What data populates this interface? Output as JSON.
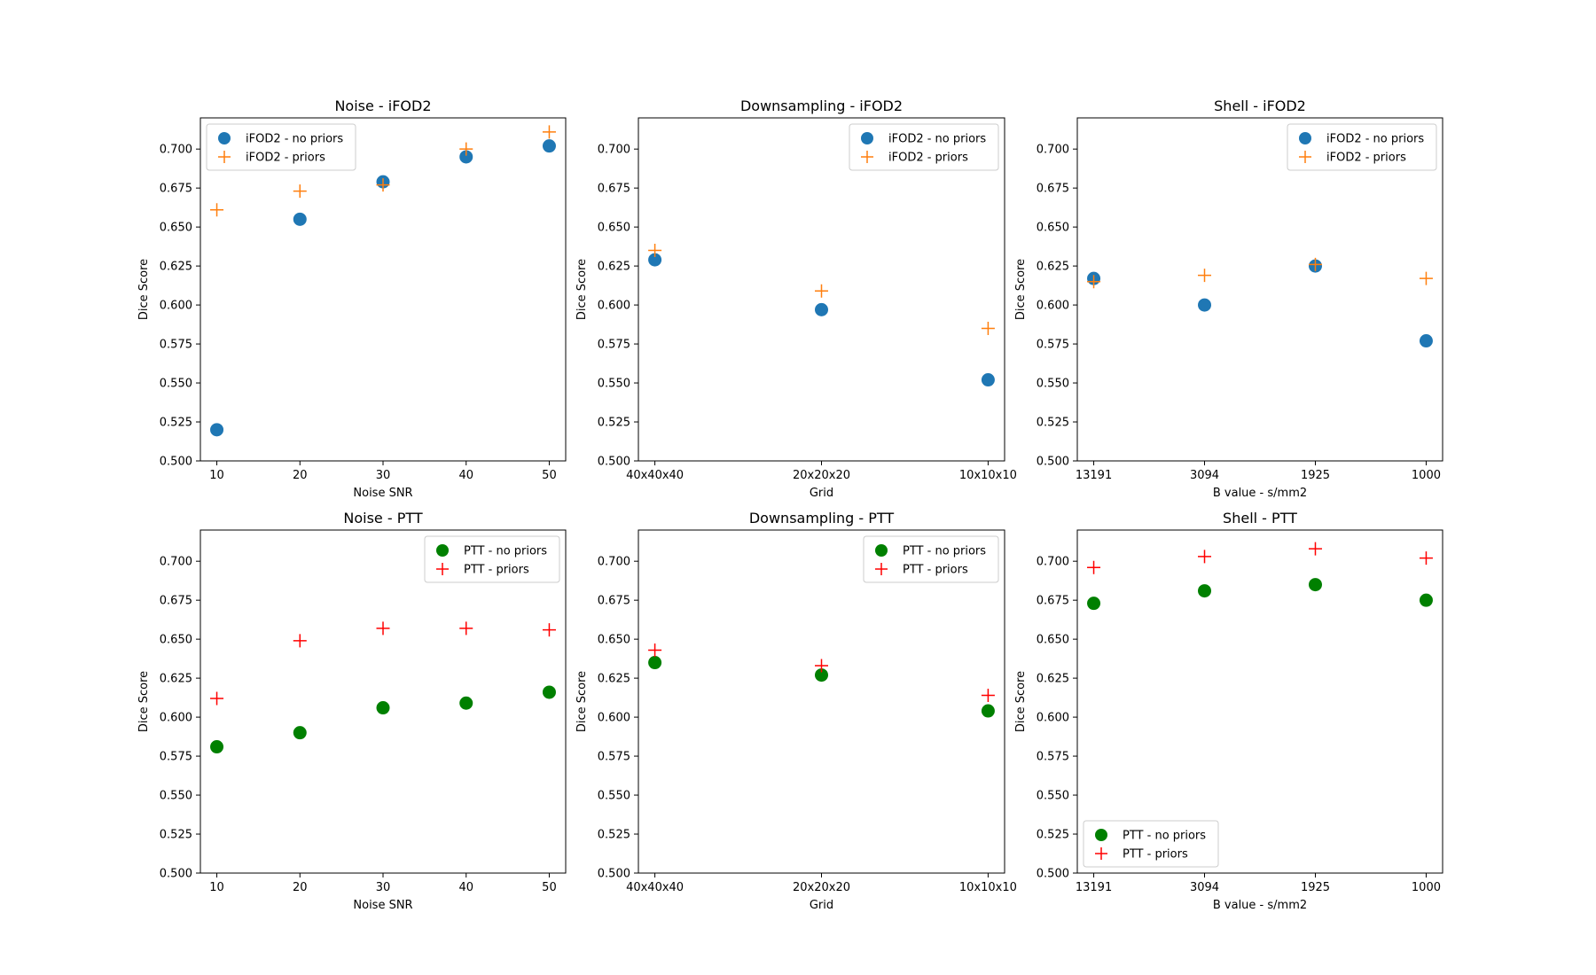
{
  "colors": {
    "ifod2_no_priors": "#1f77b4",
    "ifod2_priors": "#ff7f0e",
    "ptt_no_priors": "#008000",
    "ptt_priors": "#ff0000"
  },
  "chart_data": [
    {
      "type": "scatter",
      "title": "Noise - iFOD2",
      "xlabel": "Noise SNR",
      "ylabel": "Dice Score",
      "categories": [
        "10",
        "20",
        "30",
        "40",
        "50"
      ],
      "ylim": [
        0.5,
        0.72
      ],
      "yticks": [
        "0.500",
        "0.525",
        "0.550",
        "0.575",
        "0.600",
        "0.625",
        "0.650",
        "0.675",
        "0.700"
      ],
      "legend_position": "top-left",
      "series": [
        {
          "name": "iFOD2 - no priors",
          "marker": "circle",
          "color": "#1f77b4",
          "values": [
            0.52,
            0.655,
            0.679,
            0.695,
            0.702
          ]
        },
        {
          "name": "iFOD2 - priors",
          "marker": "plus",
          "color": "#ff7f0e",
          "values": [
            0.661,
            0.673,
            0.677,
            0.7,
            0.711
          ]
        }
      ]
    },
    {
      "type": "scatter",
      "title": "Downsampling - iFOD2",
      "xlabel": "Grid",
      "ylabel": "Dice Score",
      "categories": [
        "40x40x40",
        "20x20x20",
        "10x10x10"
      ],
      "ylim": [
        0.5,
        0.72
      ],
      "yticks": [
        "0.500",
        "0.525",
        "0.550",
        "0.575",
        "0.600",
        "0.625",
        "0.650",
        "0.675",
        "0.700"
      ],
      "legend_position": "top-right",
      "series": [
        {
          "name": "iFOD2 - no priors",
          "marker": "circle",
          "color": "#1f77b4",
          "values": [
            0.629,
            0.597,
            0.552
          ]
        },
        {
          "name": "iFOD2 - priors",
          "marker": "plus",
          "color": "#ff7f0e",
          "values": [
            0.635,
            0.609,
            0.585
          ]
        }
      ]
    },
    {
      "type": "scatter",
      "title": "Shell - iFOD2",
      "xlabel": "B value - s/mm2",
      "ylabel": "Dice Score",
      "categories": [
        "13191",
        "3094",
        "1925",
        "1000"
      ],
      "ylim": [
        0.5,
        0.72
      ],
      "yticks": [
        "0.500",
        "0.525",
        "0.550",
        "0.575",
        "0.600",
        "0.625",
        "0.650",
        "0.675",
        "0.700"
      ],
      "legend_position": "top-right",
      "series": [
        {
          "name": "iFOD2 - no priors",
          "marker": "circle",
          "color": "#1f77b4",
          "values": [
            0.617,
            0.6,
            0.625,
            0.577
          ]
        },
        {
          "name": "iFOD2 - priors",
          "marker": "plus",
          "color": "#ff7f0e",
          "values": [
            0.615,
            0.619,
            0.626,
            0.617
          ]
        }
      ]
    },
    {
      "type": "scatter",
      "title": "Noise - PTT",
      "xlabel": "Noise SNR",
      "ylabel": "Dice Score",
      "categories": [
        "10",
        "20",
        "30",
        "40",
        "50"
      ],
      "ylim": [
        0.5,
        0.72
      ],
      "yticks": [
        "0.500",
        "0.525",
        "0.550",
        "0.575",
        "0.600",
        "0.625",
        "0.650",
        "0.675",
        "0.700"
      ],
      "legend_position": "top-right",
      "series": [
        {
          "name": "PTT - no priors",
          "marker": "circle",
          "color": "#008000",
          "values": [
            0.581,
            0.59,
            0.606,
            0.609,
            0.616
          ]
        },
        {
          "name": "PTT - priors",
          "marker": "plus",
          "color": "#ff0000",
          "values": [
            0.612,
            0.649,
            0.657,
            0.657,
            0.656
          ]
        }
      ]
    },
    {
      "type": "scatter",
      "title": "Downsampling - PTT",
      "xlabel": "Grid",
      "ylabel": "Dice Score",
      "categories": [
        "40x40x40",
        "20x20x20",
        "10x10x10"
      ],
      "ylim": [
        0.5,
        0.72
      ],
      "yticks": [
        "0.500",
        "0.525",
        "0.550",
        "0.575",
        "0.600",
        "0.625",
        "0.650",
        "0.675",
        "0.700"
      ],
      "legend_position": "top-right",
      "series": [
        {
          "name": "PTT - no priors",
          "marker": "circle",
          "color": "#008000",
          "values": [
            0.635,
            0.627,
            0.604
          ]
        },
        {
          "name": "PTT - priors",
          "marker": "plus",
          "color": "#ff0000",
          "values": [
            0.643,
            0.633,
            0.614
          ]
        }
      ]
    },
    {
      "type": "scatter",
      "title": "Shell - PTT",
      "xlabel": "B value - s/mm2",
      "ylabel": "Dice Score",
      "categories": [
        "13191",
        "3094",
        "1925",
        "1000"
      ],
      "ylim": [
        0.5,
        0.72
      ],
      "yticks": [
        "0.500",
        "0.525",
        "0.550",
        "0.575",
        "0.600",
        "0.625",
        "0.650",
        "0.675",
        "0.700"
      ],
      "legend_position": "bottom-left",
      "series": [
        {
          "name": "PTT - no priors",
          "marker": "circle",
          "color": "#008000",
          "values": [
            0.673,
            0.681,
            0.685,
            0.675
          ]
        },
        {
          "name": "PTT - priors",
          "marker": "plus",
          "color": "#ff0000",
          "values": [
            0.696,
            0.703,
            0.708,
            0.702
          ]
        }
      ]
    }
  ]
}
